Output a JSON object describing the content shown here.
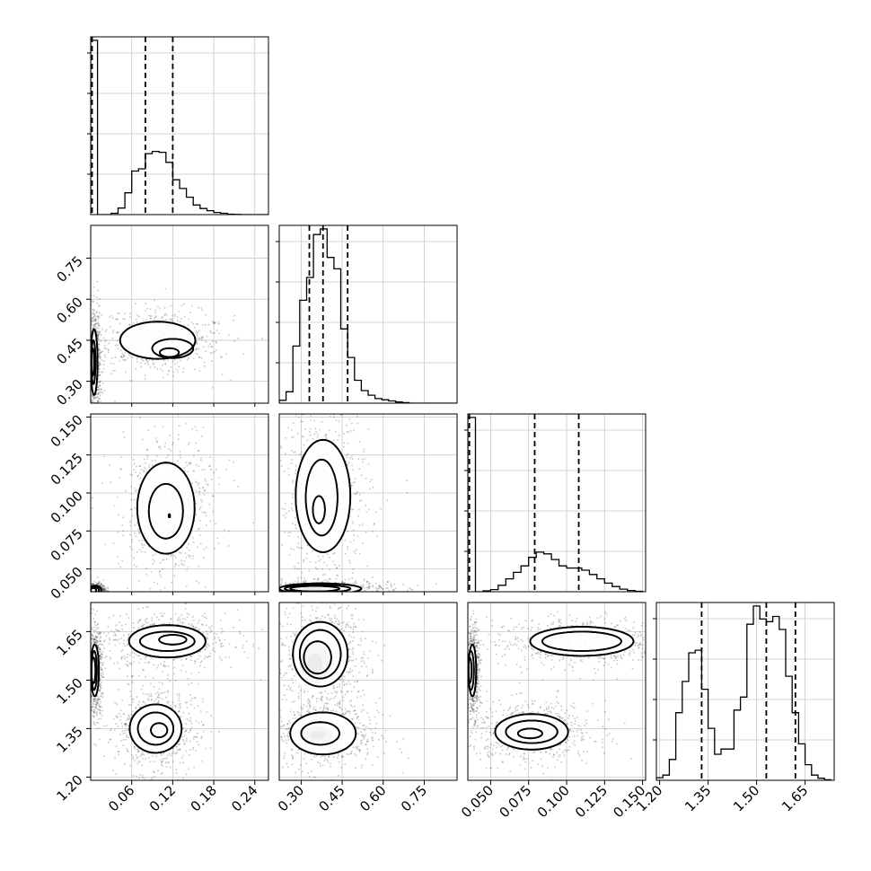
{
  "chart_data": {
    "type": "corner",
    "title": "",
    "grid": true,
    "parameters": [
      {
        "ticks": [
          0.06,
          0.12,
          0.18,
          0.24
        ],
        "tick_labels": [
          "0.06",
          "0.12",
          "0.18",
          "0.24"
        ],
        "range": [
          0.0,
          0.26
        ]
      },
      {
        "ticks": [
          0.3,
          0.45,
          0.6,
          0.75
        ],
        "tick_labels": [
          "0.30",
          "0.45",
          "0.60",
          "0.75"
        ],
        "range": [
          0.22,
          0.87
        ]
      },
      {
        "ticks": [
          0.05,
          0.075,
          0.1,
          0.125,
          0.15
        ],
        "tick_labels": [
          "0.050",
          "0.075",
          "0.100",
          "0.125",
          "0.150"
        ],
        "range": [
          0.035,
          0.152
        ]
      },
      {
        "ticks": [
          1.2,
          1.35,
          1.5,
          1.65
        ],
        "tick_labels": [
          "1.20",
          "1.35",
          "1.50",
          "1.65"
        ],
        "range": [
          1.19,
          1.74
        ]
      }
    ],
    "histograms": [
      {
        "quantiles": [
          0.002,
          0.08,
          0.12
        ],
        "bin_edges": [
          0.0,
          0.01,
          0.02,
          0.03,
          0.04,
          0.05,
          0.06,
          0.07,
          0.08,
          0.09,
          0.1,
          0.11,
          0.12,
          0.13,
          0.14,
          0.15,
          0.16,
          0.17,
          0.18,
          0.19,
          0.2,
          0.21,
          0.22,
          0.23,
          0.24,
          0.25,
          0.26
        ],
        "counts": [
          4.0,
          0,
          0,
          0.03,
          0.15,
          0.5,
          1.0,
          1.05,
          1.4,
          1.45,
          1.43,
          1.2,
          0.8,
          0.6,
          0.4,
          0.22,
          0.14,
          0.09,
          0.05,
          0.03,
          0.01,
          0.005,
          0,
          0,
          0,
          0
        ]
      },
      {
        "quantiles": [
          0.33,
          0.38,
          0.47
        ],
        "bin_edges": [
          0.22,
          0.245,
          0.27,
          0.295,
          0.32,
          0.345,
          0.37,
          0.395,
          0.42,
          0.445,
          0.47,
          0.495,
          0.52,
          0.545,
          0.57,
          0.595,
          0.62,
          0.645,
          0.67,
          0.695,
          0.72,
          0.745,
          0.77,
          0.795,
          0.82,
          0.845,
          0.87
        ],
        "counts": [
          0.05,
          0.2,
          1.0,
          1.8,
          2.2,
          2.95,
          3.05,
          2.55,
          2.35,
          1.3,
          0.8,
          0.4,
          0.22,
          0.14,
          0.08,
          0.06,
          0.04,
          0.02,
          0.01,
          0,
          0,
          0,
          0,
          0,
          0,
          0
        ]
      },
      {
        "quantiles": [
          0.036,
          0.079,
          0.108
        ],
        "bin_edges": [
          0.035,
          0.04,
          0.045,
          0.05,
          0.055,
          0.06,
          0.065,
          0.07,
          0.075,
          0.08,
          0.085,
          0.09,
          0.095,
          0.1,
          0.105,
          0.11,
          0.115,
          0.12,
          0.125,
          0.13,
          0.135,
          0.14,
          0.145,
          0.15
        ],
        "counts": [
          4.05,
          0,
          0.02,
          0.05,
          0.15,
          0.3,
          0.45,
          0.6,
          0.8,
          0.92,
          0.88,
          0.75,
          0.6,
          0.55,
          0.55,
          0.5,
          0.4,
          0.3,
          0.2,
          0.12,
          0.06,
          0.03,
          0.01
        ]
      },
      {
        "quantiles": [
          1.33,
          1.53,
          1.62
        ],
        "bin_edges": [
          1.19,
          1.21,
          1.23,
          1.25,
          1.27,
          1.29,
          1.31,
          1.33,
          1.35,
          1.37,
          1.39,
          1.41,
          1.43,
          1.45,
          1.47,
          1.49,
          1.51,
          1.53,
          1.55,
          1.57,
          1.59,
          1.61,
          1.63,
          1.65,
          1.67,
          1.69,
          1.71,
          1.73
        ],
        "counts": [
          0.05,
          0.1,
          0.4,
          1.3,
          1.9,
          2.45,
          2.5,
          1.75,
          1.0,
          0.5,
          0.6,
          0.6,
          1.35,
          1.6,
          3.0,
          3.35,
          3.1,
          3.05,
          3.15,
          2.9,
          2.0,
          1.3,
          0.7,
          0.3,
          0.1,
          0.04,
          0.01
        ]
      }
    ],
    "pair_panels": [
      {
        "x": 0,
        "y": 1,
        "dense_clusters": [
          {
            "cx": 0.003,
            "cy": 0.37,
            "sx": 0.002,
            "sy": 0.05
          }
        ],
        "contour_groups": [
          {
            "levels": [
              [
                0.098,
                0.45,
                0.055,
                0.068,
                -0.2
              ],
              [
                0.12,
                0.42,
                0.03,
                0.035,
                -0.2
              ],
              [
                0.115,
                0.405,
                0.014,
                0.016,
                -0.1
              ]
            ]
          },
          {
            "levels": [
              [
                0.005,
                0.37,
                0.005,
                0.12,
                0
              ],
              [
                0.004,
                0.37,
                0.003,
                0.08,
                0
              ],
              [
                0.003,
                0.37,
                0.002,
                0.05,
                0
              ]
            ]
          }
        ]
      },
      {
        "x": 0,
        "y": 2,
        "dense_clusters": [
          {
            "cx": 0.003,
            "cy": 0.038,
            "sx": 0.003,
            "sy": 0.002
          }
        ],
        "contour_groups": [
          {
            "levels": [
              [
                0.11,
                0.09,
                0.042,
                0.03,
                0.55
              ],
              [
                0.11,
                0.088,
                0.025,
                0.018,
                0.55
              ],
              [
                0.115,
                0.085,
                0.001,
                0.001,
                0
              ]
            ]
          },
          {
            "levels": [
              [
                0.007,
                0.036,
                0.008,
                0.003,
                0
              ],
              [
                0.006,
                0.036,
                0.006,
                0.002,
                0
              ],
              [
                0.004,
                0.036,
                0.004,
                0.0015,
                0
              ]
            ]
          }
        ]
      },
      {
        "x": 0,
        "y": 3,
        "dense_clusters": [
          {
            "cx": 0.003,
            "cy": 1.53,
            "sx": 0.002,
            "sy": 0.04
          }
        ],
        "contour_groups": [
          {
            "levels": [
              [
                0.112,
                1.62,
                0.056,
                0.05,
                0.1
              ],
              [
                0.112,
                1.62,
                0.04,
                0.03,
                0.1
              ],
              [
                0.12,
                1.625,
                0.02,
                0.015,
                0.1
              ]
            ]
          },
          {
            "levels": [
              [
                0.095,
                1.35,
                0.038,
                0.075,
                -0.55
              ],
              [
                0.095,
                1.35,
                0.026,
                0.05,
                -0.55
              ],
              [
                0.1,
                1.345,
                0.012,
                0.022,
                -0.55
              ]
            ]
          },
          {
            "levels": [
              [
                0.006,
                1.53,
                0.006,
                0.08,
                0
              ],
              [
                0.005,
                1.53,
                0.004,
                0.06,
                0
              ],
              [
                0.004,
                1.53,
                0.003,
                0.04,
                0
              ]
            ]
          }
        ]
      },
      {
        "x": 1,
        "y": 2,
        "dense_clusters": [
          {
            "cx": 0.34,
            "cy": 0.037,
            "sx": 0.05,
            "sy": 0.002
          }
        ],
        "contour_groups": [
          {
            "levels": [
              [
                0.38,
                0.098,
                0.1,
                0.037,
                0
              ],
              [
                0.375,
                0.097,
                0.058,
                0.025,
                0
              ],
              [
                0.365,
                0.089,
                0.022,
                0.009,
                0
              ]
            ]
          },
          {
            "levels": [
              [
                0.37,
                0.037,
                0.15,
                0.0035,
                0
              ],
              [
                0.36,
                0.037,
                0.12,
                0.0025,
                0
              ],
              [
                0.35,
                0.037,
                0.09,
                0.0018,
                0
              ]
            ]
          }
        ]
      },
      {
        "x": 1,
        "y": 3,
        "dense_clusters": [
          {
            "cx": 0.35,
            "cy": 1.55,
            "sx": 0.04,
            "sy": 0.045
          },
          {
            "cx": 0.36,
            "cy": 1.33,
            "sx": 0.04,
            "sy": 0.02
          }
        ],
        "contour_groups": [
          {
            "levels": [
              [
                0.37,
                1.58,
                0.1,
                0.1,
                0
              ],
              [
                0.37,
                1.58,
                0.075,
                0.075,
                0
              ],
              [
                0.36,
                1.57,
                0.05,
                0.05,
                0
              ]
            ]
          },
          {
            "levels": [
              [
                0.38,
                1.335,
                0.12,
                0.065,
                0
              ],
              [
                0.37,
                1.335,
                0.07,
                0.035,
                0
              ]
            ]
          }
        ]
      },
      {
        "x": 2,
        "y": 3,
        "dense_clusters": [
          {
            "cx": 0.037,
            "cy": 1.53,
            "sx": 0.002,
            "sy": 0.04
          }
        ],
        "contour_groups": [
          {
            "levels": [
              [
                0.11,
                1.62,
                0.034,
                0.045,
                0.05
              ],
              [
                0.11,
                1.62,
                0.026,
                0.03,
                0.05
              ]
            ]
          },
          {
            "levels": [
              [
                0.077,
                1.34,
                0.024,
                0.055,
                0
              ],
              [
                0.077,
                1.34,
                0.017,
                0.035,
                0
              ],
              [
                0.076,
                1.335,
                0.008,
                0.015,
                0
              ]
            ]
          },
          {
            "levels": [
              [
                0.038,
                1.53,
                0.0025,
                0.08,
                0
              ],
              [
                0.037,
                1.53,
                0.002,
                0.06,
                0
              ],
              [
                0.036,
                1.53,
                0.0015,
                0.04,
                0
              ]
            ]
          }
        ]
      }
    ]
  }
}
